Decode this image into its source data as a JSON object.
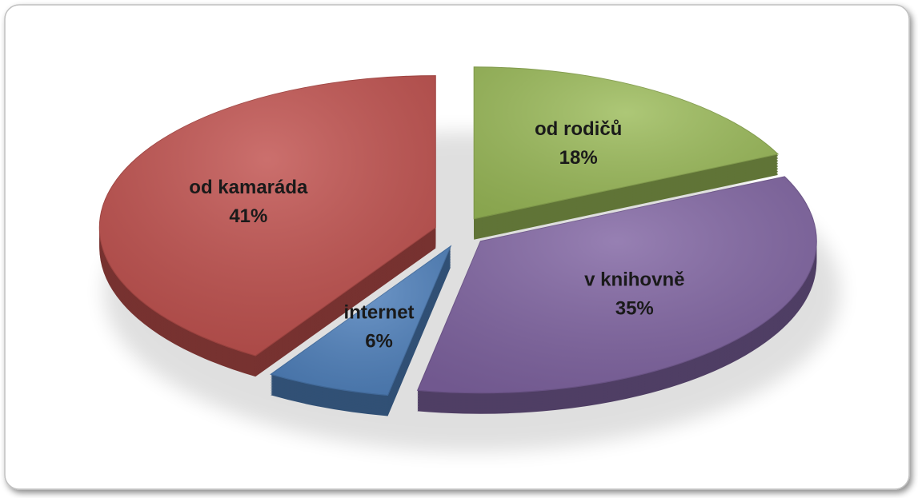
{
  "chart_data": {
    "type": "pie",
    "categories": [
      "od rodičů",
      "v  knihovně",
      "internet",
      "od kamaráda"
    ],
    "values": [
      18,
      35,
      6,
      41
    ],
    "value_labels": [
      "18%",
      "35%",
      "6%",
      "41%"
    ],
    "colors": [
      "#9bbb59",
      "#8064a2",
      "#4f81bd",
      "#c0504d"
    ]
  }
}
